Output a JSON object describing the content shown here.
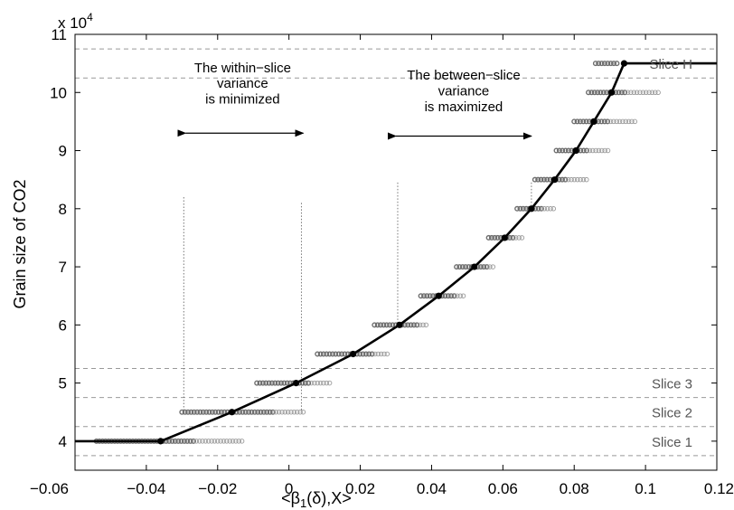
{
  "chart_data": {
    "type": "scatter",
    "xlabel": "<β1(δ),X>",
    "ylabel": "Grain size of CO2",
    "y_multiplier": "x 10^4",
    "y_multiplier_base": "x 10",
    "y_multiplier_exp": "4",
    "xlim": [
      -0.06,
      0.12
    ],
    "ylim": [
      35000,
      110000
    ],
    "x_ticks": [
      -0.06,
      -0.04,
      -0.02,
      0,
      0.02,
      0.04,
      0.06,
      0.08,
      0.1,
      0.12
    ],
    "x_tick_labels": [
      "−0.06",
      "−0.04",
      "−0.02",
      "0",
      "0.02",
      "0.04",
      "0.06",
      "0.08",
      "0.1",
      "0.12"
    ],
    "y_ticks": [
      40000,
      50000,
      60000,
      70000,
      80000,
      90000,
      100000,
      110000
    ],
    "y_tick_labels": [
      "4",
      "5",
      "6",
      "7",
      "8",
      "9",
      "10",
      "11"
    ],
    "grid": false,
    "curve": {
      "color": "#000000",
      "points": [
        [
          -0.06,
          40000
        ],
        [
          -0.036,
          40000
        ],
        [
          -0.016,
          45000
        ],
        [
          0.002,
          50000
        ],
        [
          0.018,
          55000
        ],
        [
          0.031,
          60000
        ],
        [
          0.042,
          65000
        ],
        [
          0.052,
          70000
        ],
        [
          0.0605,
          75000
        ],
        [
          0.068,
          80000
        ],
        [
          0.0745,
          85000
        ],
        [
          0.0805,
          90000
        ],
        [
          0.0855,
          95000
        ],
        [
          0.0905,
          100000
        ],
        [
          0.094,
          105000
        ],
        [
          0.12,
          105000
        ]
      ]
    },
    "slices": [
      {
        "y": 40000,
        "x_min": -0.054,
        "x_max": -0.026,
        "x_max_light": -0.013,
        "mean_x": -0.036
      },
      {
        "y": 45000,
        "x_min": -0.03,
        "x_max": -0.004,
        "x_max_light": 0.004,
        "mean_x": -0.016
      },
      {
        "y": 50000,
        "x_min": -0.009,
        "x_max": 0.006,
        "x_max_light": 0.012,
        "mean_x": 0.002
      },
      {
        "y": 55000,
        "x_min": 0.008,
        "x_max": 0.024,
        "x_max_light": 0.028,
        "mean_x": 0.018
      },
      {
        "y": 60000,
        "x_min": 0.024,
        "x_max": 0.036,
        "x_max_light": 0.039,
        "mean_x": 0.031
      },
      {
        "y": 65000,
        "x_min": 0.037,
        "x_max": 0.047,
        "x_max_light": 0.049,
        "mean_x": 0.042
      },
      {
        "y": 70000,
        "x_min": 0.047,
        "x_max": 0.056,
        "x_max_light": 0.058,
        "mean_x": 0.052
      },
      {
        "y": 75000,
        "x_min": 0.056,
        "x_max": 0.063,
        "x_max_light": 0.066,
        "mean_x": 0.0605
      },
      {
        "y": 80000,
        "x_min": 0.064,
        "x_max": 0.071,
        "x_max_light": 0.075,
        "mean_x": 0.068
      },
      {
        "y": 85000,
        "x_min": 0.069,
        "x_max": 0.078,
        "x_max_light": 0.084,
        "mean_x": 0.0745
      },
      {
        "y": 90000,
        "x_min": 0.075,
        "x_max": 0.084,
        "x_max_light": 0.09,
        "mean_x": 0.0805
      },
      {
        "y": 95000,
        "x_min": 0.08,
        "x_max": 0.09,
        "x_max_light": 0.097,
        "mean_x": 0.0855
      },
      {
        "y": 100000,
        "x_min": 0.084,
        "x_max": 0.095,
        "x_max_light": 0.104,
        "mean_x": 0.0905
      },
      {
        "y": 105000,
        "x_min": 0.086,
        "x_max": 0.092,
        "x_max_light": 0.092,
        "mean_x": 0.094
      }
    ],
    "slice_boundaries": [
      37500,
      42500,
      47500,
      52500,
      102500,
      107500
    ],
    "slice_labels": [
      {
        "text": "Slice 1",
        "y": 40000
      },
      {
        "text": "Slice 2",
        "y": 45000
      },
      {
        "text": "Slice 3",
        "y": 50000
      },
      {
        "text": "Slice H",
        "y": 105000
      }
    ],
    "annotations": [
      {
        "id": "within",
        "lines": [
          "The within−slice",
          "variance",
          "is minimized"
        ],
        "text_x": -0.013,
        "text_y": [
          103500,
          100800,
          98100
        ],
        "arrow": {
          "x1": -0.029,
          "x2": 0.004,
          "y": 93000
        },
        "guides": [
          {
            "x": -0.0295,
            "y_top": 82000,
            "y_bottom": 45000
          },
          {
            "x": 0.0035,
            "y_top": 81000,
            "y_bottom": 45000
          }
        ]
      },
      {
        "id": "between",
        "lines": [
          "The between−slice",
          "variance",
          "is maximized"
        ],
        "text_x": 0.049,
        "text_y": [
          102200,
          99500,
          96800
        ],
        "arrow": {
          "x1": 0.03,
          "x2": 0.068,
          "y": 92500
        },
        "guides": [
          {
            "x": 0.0305,
            "y_top": 84500,
            "y_bottom": 60000
          },
          {
            "x": 0.068,
            "y_top": 84500,
            "y_bottom": 80000
          }
        ]
      }
    ]
  }
}
